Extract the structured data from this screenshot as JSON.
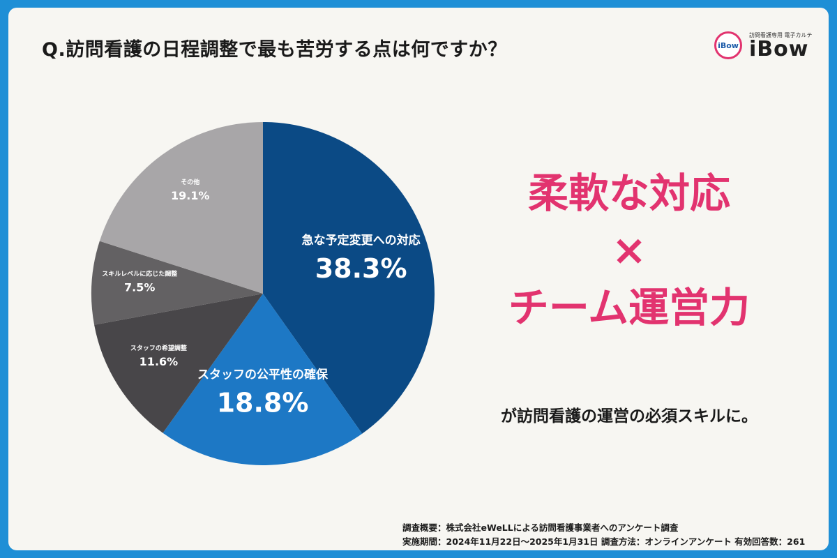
{
  "title": "Q.訪問看護の日程調整で最も苦労する点は何ですか？",
  "logo": {
    "badge": "iBow",
    "subtitle": "訪問看護専用 電子カルテ",
    "name": "iBow"
  },
  "headline": {
    "line1": "柔軟な対応",
    "cross": "×",
    "line2": "チーム運営力",
    "subline": "が訪問看護の運営の必須スキルに。"
  },
  "footer": {
    "line1": "調査概要：株式会社eWeLLによる訪問看護事業者へのアンケート調査",
    "line2": "実施期間：2024年11月22日〜2025年1月31日  調査方法：オンラインアンケート 有効回答数：261"
  },
  "chart_data": {
    "type": "pie",
    "title": "Q.訪問看護の日程調整で最も苦労する点は何ですか？",
    "start": "top",
    "direction": "clockwise",
    "slices": [
      {
        "label": "急な予定変更への対応",
        "value": 38.3,
        "value_text": "38.3%",
        "color": "#0b4a85",
        "label_size": "large"
      },
      {
        "label": "スタッフの公平性の確保",
        "value": 18.8,
        "value_text": "18.8%",
        "color": "#1d78c5",
        "label_size": "large"
      },
      {
        "label": "スタッフの希望調整",
        "value": 11.6,
        "value_text": "11.6%",
        "color": "#484649",
        "label_size": "small"
      },
      {
        "label": "スキルレベルに応じた調整",
        "value": 7.5,
        "value_text": "7.5%",
        "color": "#636163",
        "label_size": "small"
      },
      {
        "label": "その他",
        "value": 19.1,
        "value_text": "19.1%",
        "color": "#a8a6a8",
        "label_size": "small"
      }
    ]
  }
}
